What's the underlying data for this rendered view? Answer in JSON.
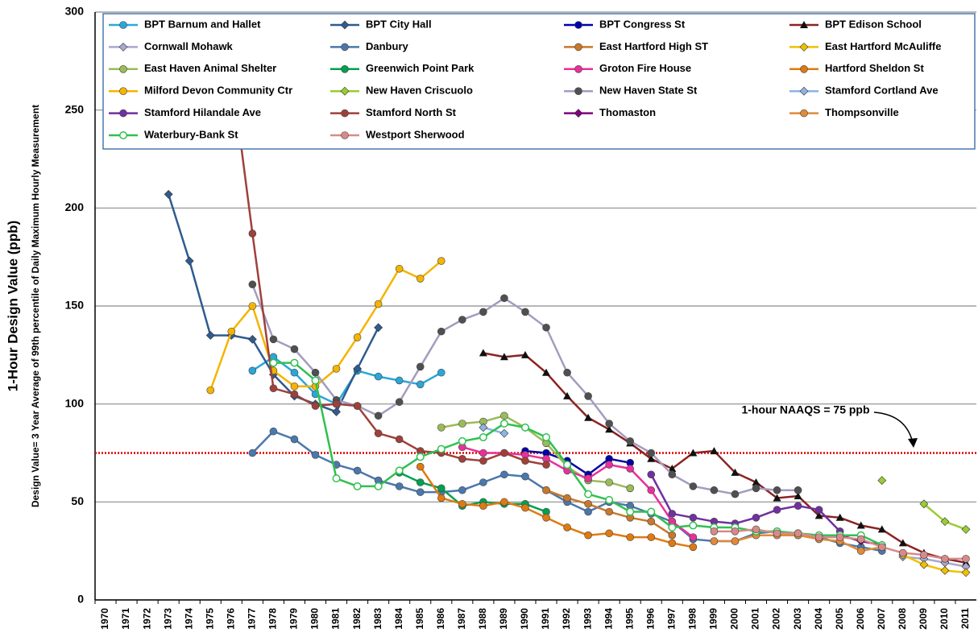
{
  "chart_data": {
    "type": "line",
    "ylabel": "1-Hour Design Value (ppb)",
    "ylabel2": "Design Value= 3 Year Average of 99th percentile of Daily Maximum Hourly  Measurement",
    "reference_line": {
      "value": 75,
      "label": "1-hour NAAQS = 75 ppb",
      "color": "#e00000"
    },
    "ylim": [
      0,
      300
    ],
    "yticks": [
      0,
      50,
      100,
      150,
      200,
      250,
      300
    ],
    "grid": true,
    "legend": "top",
    "categories": [
      "1970",
      "1971",
      "1972",
      "1973",
      "1974",
      "1975",
      "1976",
      "1977",
      "1978",
      "1979",
      "1980",
      "1981",
      "1982",
      "1983",
      "1984",
      "1985",
      "1986",
      "1987",
      "1988",
      "1989",
      "1990",
      "1991",
      "1992",
      "1993",
      "1994",
      "1995",
      "1996",
      "1997",
      "1998",
      "1999",
      "2000",
      "2001",
      "2002",
      "2003",
      "2004",
      "2005",
      "2006",
      "2007",
      "2008",
      "2009",
      "2010",
      "2011"
    ],
    "series": [
      {
        "name": "BPT Barnum and Hallet",
        "color": "#2aa7d9",
        "marker": "circle",
        "values": [
          null,
          null,
          null,
          null,
          null,
          null,
          null,
          117,
          124,
          116,
          105,
          100,
          117,
          114,
          112,
          110,
          116,
          null,
          null,
          null,
          null,
          null,
          null,
          null,
          null,
          null,
          null,
          null,
          null,
          null,
          null,
          null,
          null,
          null,
          null,
          null,
          null,
          null,
          null,
          null,
          null,
          null
        ]
      },
      {
        "name": "BPT City Hall",
        "color": "#2f5b8f",
        "marker": "diamond",
        "values": [
          null,
          null,
          null,
          207,
          173,
          135,
          135,
          133,
          115,
          104,
          100,
          96,
          118,
          139,
          null,
          null,
          null,
          null,
          null,
          null,
          null,
          null,
          null,
          null,
          null,
          null,
          null,
          null,
          null,
          null,
          null,
          null,
          null,
          null,
          null,
          null,
          null,
          null,
          null,
          null,
          null,
          null
        ]
      },
      {
        "name": "BPT Congress St",
        "color": "#0000a8",
        "marker": "circle",
        "values": [
          null,
          null,
          null,
          null,
          null,
          null,
          null,
          null,
          null,
          null,
          null,
          null,
          null,
          null,
          null,
          null,
          null,
          null,
          null,
          null,
          76,
          75,
          71,
          64,
          72,
          70,
          null,
          null,
          null,
          null,
          null,
          null,
          null,
          null,
          null,
          null,
          null,
          null,
          null,
          null,
          null,
          null
        ]
      },
      {
        "name": "BPT Edison School",
        "color": "#8b2323",
        "marker": "triangle",
        "values": [
          null,
          null,
          null,
          null,
          null,
          null,
          null,
          null,
          null,
          null,
          null,
          null,
          null,
          null,
          null,
          null,
          null,
          null,
          126,
          124,
          125,
          116,
          104,
          93,
          87,
          80,
          72,
          67,
          75,
          76,
          65,
          60,
          52,
          53,
          43,
          42,
          38,
          36,
          29,
          24,
          21,
          19
        ]
      },
      {
        "name": "Cornwall Mohawk",
        "color": "#a8a8d0",
        "marker": "diamond",
        "values": [
          null,
          null,
          null,
          null,
          null,
          null,
          null,
          null,
          null,
          null,
          null,
          null,
          null,
          null,
          null,
          null,
          null,
          null,
          null,
          null,
          null,
          null,
          null,
          null,
          null,
          null,
          null,
          null,
          null,
          null,
          null,
          null,
          null,
          null,
          null,
          null,
          null,
          null,
          22,
          21,
          19,
          17
        ]
      },
      {
        "name": "Danbury",
        "color": "#4a78ad",
        "marker": "circle",
        "values": [
          null,
          null,
          null,
          null,
          null,
          null,
          null,
          75,
          86,
          82,
          74,
          69,
          66,
          61,
          58,
          55,
          55,
          56,
          60,
          64,
          63,
          56,
          50,
          45,
          50,
          48,
          44,
          40,
          31,
          30,
          30,
          34,
          35,
          33,
          32,
          29,
          27,
          25,
          null,
          null,
          null,
          null
        ]
      },
      {
        "name": "East Hartford High ST",
        "color": "#c8782a",
        "marker": "circle",
        "values": [
          null,
          null,
          null,
          null,
          null,
          null,
          null,
          null,
          null,
          null,
          null,
          null,
          null,
          null,
          null,
          null,
          null,
          null,
          null,
          null,
          null,
          56,
          52,
          49,
          45,
          42,
          40,
          33,
          null,
          null,
          null,
          null,
          null,
          null,
          null,
          null,
          null,
          null,
          null,
          null,
          null,
          null
        ]
      },
      {
        "name": "East Hartford  McAuliffe",
        "color": "#f0c000",
        "marker": "diamond",
        "values": [
          null,
          null,
          null,
          null,
          null,
          null,
          null,
          null,
          null,
          null,
          null,
          null,
          null,
          null,
          null,
          null,
          null,
          null,
          null,
          null,
          null,
          null,
          null,
          null,
          null,
          null,
          null,
          null,
          null,
          null,
          null,
          null,
          null,
          null,
          null,
          null,
          null,
          null,
          23,
          18,
          15,
          14
        ]
      },
      {
        "name": "East Haven Animal Shelter",
        "color": "#9bbb59",
        "marker": "circle",
        "values": [
          null,
          null,
          null,
          null,
          null,
          null,
          null,
          null,
          null,
          null,
          null,
          null,
          null,
          null,
          null,
          null,
          88,
          90,
          91,
          94,
          88,
          80,
          68,
          61,
          60,
          57,
          null,
          null,
          null,
          null,
          null,
          null,
          null,
          null,
          null,
          null,
          null,
          null,
          null,
          null,
          null,
          null
        ]
      },
      {
        "name": "Greenwich Point Park",
        "color": "#00a050",
        "marker": "circle",
        "values": [
          null,
          null,
          null,
          null,
          null,
          null,
          null,
          null,
          null,
          null,
          null,
          null,
          null,
          null,
          65,
          60,
          57,
          48,
          50,
          49,
          49,
          45,
          null,
          null,
          null,
          null,
          null,
          null,
          null,
          null,
          null,
          null,
          null,
          null,
          null,
          null,
          null,
          null,
          null,
          null,
          null,
          null
        ]
      },
      {
        "name": "Groton Fire House",
        "color": "#e8309a",
        "marker": "circle",
        "values": [
          null,
          null,
          null,
          null,
          null,
          null,
          null,
          null,
          null,
          null,
          null,
          null,
          null,
          null,
          null,
          null,
          null,
          78,
          75,
          75,
          74,
          72,
          66,
          62,
          69,
          67,
          56,
          40,
          32,
          null,
          null,
          null,
          null,
          null,
          null,
          null,
          null,
          null,
          null,
          null,
          null,
          null
        ]
      },
      {
        "name": "Hartford Sheldon St",
        "color": "#e07a10",
        "marker": "circle",
        "values": [
          null,
          null,
          null,
          null,
          null,
          null,
          null,
          null,
          null,
          null,
          null,
          null,
          null,
          null,
          null,
          68,
          52,
          49,
          48,
          50,
          47,
          42,
          37,
          33,
          34,
          32,
          32,
          29,
          27,
          null,
          null,
          null,
          null,
          null,
          null,
          null,
          null,
          null,
          null,
          null,
          null,
          null
        ]
      },
      {
        "name": "Milford Devon Community Ctr",
        "color": "#f5b400",
        "marker": "circle",
        "values": [
          null,
          null,
          null,
          null,
          null,
          107,
          137,
          150,
          117,
          109,
          109,
          118,
          134,
          151,
          169,
          164,
          173,
          null,
          null,
          null,
          null,
          null,
          null,
          null,
          null,
          null,
          null,
          null,
          null,
          null,
          null,
          null,
          null,
          null,
          null,
          null,
          null,
          null,
          null,
          null,
          null,
          null
        ]
      },
      {
        "name": "New Haven Criscuolo",
        "color": "#9acd32",
        "marker": "diamond",
        "values": [
          null,
          null,
          null,
          null,
          null,
          null,
          null,
          null,
          null,
          null,
          null,
          null,
          null,
          null,
          null,
          null,
          null,
          null,
          null,
          null,
          null,
          null,
          null,
          null,
          null,
          null,
          null,
          null,
          null,
          null,
          null,
          null,
          null,
          null,
          null,
          null,
          null,
          61,
          null,
          49,
          40,
          36
        ]
      },
      {
        "name": "New Haven State St",
        "color": "#a39cc0",
        "marker": "circle",
        "marker_color": "#505050",
        "values": [
          null,
          null,
          null,
          null,
          null,
          null,
          null,
          161,
          133,
          128,
          116,
          102,
          99,
          94,
          101,
          119,
          137,
          143,
          147,
          154,
          147,
          139,
          116,
          104,
          90,
          81,
          75,
          64,
          58,
          56,
          54,
          57,
          56,
          56,
          null,
          null,
          null,
          null,
          null,
          null,
          null,
          null
        ]
      },
      {
        "name": "Stamford Cortland Ave",
        "color": "#8db4e2",
        "marker": "diamond",
        "values": [
          null,
          null,
          null,
          null,
          null,
          null,
          null,
          null,
          null,
          null,
          null,
          null,
          null,
          null,
          null,
          null,
          null,
          null,
          88,
          85,
          null,
          null,
          null,
          null,
          null,
          null,
          null,
          null,
          null,
          null,
          null,
          null,
          null,
          null,
          null,
          null,
          null,
          null,
          null,
          null,
          null,
          null
        ]
      },
      {
        "name": "Stamford Hilandale Ave",
        "color": "#7030a0",
        "marker": "circle",
        "values": [
          null,
          null,
          null,
          null,
          null,
          null,
          null,
          null,
          null,
          null,
          null,
          null,
          null,
          null,
          null,
          null,
          null,
          null,
          null,
          null,
          null,
          null,
          null,
          null,
          null,
          null,
          64,
          44,
          42,
          40,
          39,
          42,
          46,
          48,
          46,
          35,
          null,
          null,
          null,
          null,
          null,
          null
        ]
      },
      {
        "name": "Stamford North St",
        "color": "#a0403a",
        "marker": "circle",
        "values": [
          null,
          null,
          null,
          null,
          null,
          null,
          270,
          187,
          108,
          105,
          99,
          100,
          99,
          85,
          82,
          76,
          75,
          72,
          71,
          75,
          71,
          69,
          null,
          null,
          null,
          null,
          null,
          null,
          null,
          null,
          null,
          null,
          null,
          null,
          null,
          null,
          null,
          null,
          null,
          null,
          null,
          null
        ]
      },
      {
        "name": "Thomaston",
        "color": "#800080",
        "marker": "diamond",
        "values": [
          null,
          null,
          null,
          null,
          null,
          null,
          null,
          null,
          null,
          null,
          null,
          null,
          null,
          null,
          null,
          null,
          null,
          null,
          null,
          null,
          null,
          null,
          null,
          null,
          null,
          null,
          null,
          null,
          null,
          null,
          null,
          null,
          null,
          null,
          null,
          33,
          30,
          28,
          null,
          null,
          null,
          null
        ]
      },
      {
        "name": "Thompsonville",
        "color": "#e08a3a",
        "marker": "circle",
        "values": [
          null,
          null,
          null,
          null,
          null,
          null,
          null,
          null,
          null,
          null,
          null,
          null,
          null,
          null,
          null,
          null,
          null,
          null,
          null,
          null,
          null,
          null,
          null,
          null,
          null,
          null,
          null,
          null,
          null,
          30,
          30,
          33,
          33,
          33,
          31,
          30,
          25,
          27,
          null,
          null,
          null,
          null
        ]
      },
      {
        "name": "Waterbury-Bank St",
        "color": "#30c050",
        "marker": "open-circle",
        "values": [
          null,
          null,
          null,
          null,
          null,
          null,
          null,
          null,
          121,
          121,
          112,
          62,
          58,
          58,
          66,
          73,
          77,
          81,
          83,
          90,
          88,
          83,
          69,
          54,
          51,
          45,
          45,
          37,
          38,
          37,
          37,
          35,
          35,
          34,
          33,
          33,
          33,
          28,
          null,
          null,
          null,
          null
        ]
      },
      {
        "name": "Westport Sherwood",
        "color": "#d88a8a",
        "marker": "circle",
        "values": [
          null,
          null,
          null,
          null,
          null,
          null,
          null,
          null,
          null,
          null,
          null,
          null,
          null,
          null,
          null,
          null,
          null,
          null,
          null,
          null,
          null,
          null,
          null,
          null,
          null,
          null,
          null,
          null,
          null,
          35,
          35,
          36,
          34,
          34,
          32,
          32,
          31,
          27,
          24,
          23,
          21,
          21
        ]
      }
    ]
  }
}
